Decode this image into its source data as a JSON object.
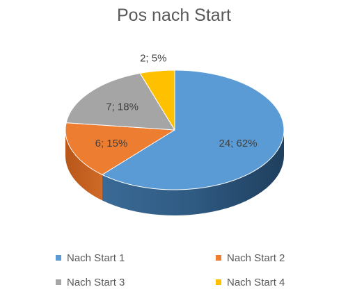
{
  "chart_data": {
    "type": "pie",
    "title": "Pos nach Start",
    "three_d": true,
    "labels": [
      "Nach Start 1",
      "Nach Start 2",
      "Nach Start 3",
      "Nach Start 4"
    ],
    "values": [
      24,
      6,
      7,
      2
    ],
    "percentages": [
      62,
      15,
      18,
      5
    ],
    "data_labels": [
      "24; 62%",
      "6; 15%",
      "7; 18%",
      "2; 5%"
    ],
    "colors": [
      "#5B9BD5",
      "#ED7D31",
      "#A5A5A5",
      "#FFC000"
    ],
    "legend_position": "bottom"
  }
}
